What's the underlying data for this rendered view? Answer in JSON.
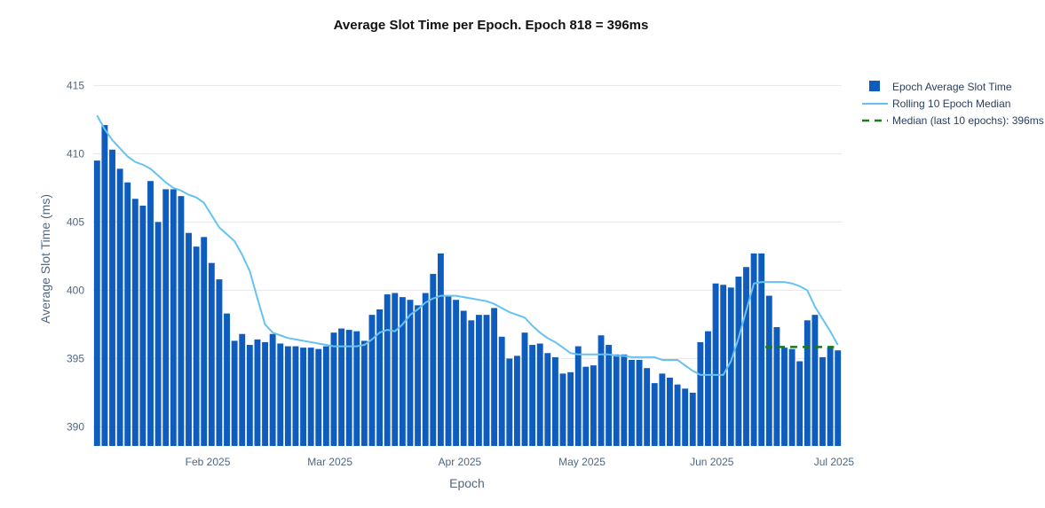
{
  "chart_data": {
    "type": "bar",
    "title": "Average Slot Time per Epoch. Epoch 818 = 396ms",
    "xlabel": "Epoch",
    "ylabel": "Average Slot Time (ms)",
    "ylim": [
      388.6,
      416.0
    ],
    "y_ticks": [
      390,
      395,
      400,
      405,
      410,
      415
    ],
    "grid": true,
    "legend_position": "top-right",
    "x_ticks": [
      {
        "label": "Feb 2025",
        "x": 14.5
      },
      {
        "label": "Mar 2025",
        "x": 30.5
      },
      {
        "label": "Apr 2025",
        "x": 47.5
      },
      {
        "label": "May 2025",
        "x": 63.5
      },
      {
        "label": "Jun 2025",
        "x": 80.5
      },
      {
        "label": "Jul 2025",
        "x": 96.5
      }
    ],
    "colors": {
      "bar": "#0f5cbf",
      "rolling": "#66c2f2",
      "median": "#1a7a1a",
      "grid": "#e6e6e6"
    },
    "series": [
      {
        "name": "Epoch Average Slot Time",
        "type": "bar",
        "values": [
          409.5,
          412.1,
          410.3,
          408.9,
          407.9,
          406.7,
          406.2,
          408.0,
          405.0,
          407.4,
          407.4,
          406.9,
          404.2,
          403.2,
          403.9,
          402.0,
          400.8,
          398.3,
          396.3,
          396.8,
          396.0,
          396.4,
          396.2,
          396.8,
          396.1,
          395.9,
          395.9,
          395.8,
          395.8,
          395.7,
          395.9,
          396.9,
          397.2,
          397.1,
          397.0,
          396.3,
          398.2,
          398.6,
          399.7,
          399.8,
          399.5,
          399.3,
          398.9,
          399.8,
          401.2,
          402.7,
          399.6,
          399.3,
          398.5,
          397.8,
          398.2,
          398.2,
          398.7,
          396.6,
          395.0,
          395.2,
          396.9,
          396.0,
          396.1,
          395.4,
          395.1,
          393.9,
          394.0,
          395.9,
          394.4,
          394.5,
          396.7,
          396.0,
          395.3,
          395.3,
          394.9,
          394.9,
          394.3,
          393.2,
          393.9,
          393.6,
          393.1,
          392.8,
          392.5,
          396.2,
          397.0,
          400.5,
          400.4,
          400.2,
          401.0,
          401.7,
          402.7,
          402.7,
          399.6,
          397.3,
          395.8,
          395.7,
          394.8,
          397.8,
          398.2,
          395.1,
          395.8,
          395.6
        ]
      },
      {
        "name": "Rolling 10 Epoch Median",
        "type": "line",
        "x": [
          0,
          1,
          2,
          3,
          4,
          5,
          6,
          7,
          8,
          9,
          10,
          11,
          12,
          13,
          14,
          15,
          16,
          17,
          18,
          19,
          20,
          21,
          22,
          23,
          24,
          25,
          26,
          27,
          28,
          29,
          30,
          31,
          32,
          33,
          34,
          35,
          36,
          37,
          38,
          39,
          40,
          41,
          42,
          43,
          44,
          45,
          46,
          47,
          48,
          49,
          50,
          51,
          52,
          53,
          54,
          55,
          56,
          57,
          58,
          59,
          60,
          61,
          62,
          63,
          64,
          65,
          66,
          67,
          68,
          69,
          70,
          71,
          72,
          73,
          74,
          75,
          76,
          77,
          78,
          79,
          80,
          81,
          82,
          83,
          84,
          85,
          86,
          87,
          88,
          89,
          90,
          91,
          92,
          93,
          94,
          95,
          96,
          97
        ],
        "values": [
          412.8,
          411.8,
          411.0,
          410.4,
          409.8,
          409.4,
          409.2,
          408.9,
          408.4,
          407.9,
          407.5,
          407.3,
          407.0,
          406.8,
          406.4,
          405.5,
          404.6,
          404.1,
          403.6,
          402.6,
          401.4,
          399.4,
          397.5,
          396.9,
          396.7,
          396.5,
          396.4,
          396.3,
          396.2,
          396.1,
          396.0,
          395.9,
          395.9,
          395.9,
          395.9,
          396.0,
          396.4,
          396.9,
          397.1,
          397.0,
          397.5,
          398.2,
          398.6,
          399.1,
          399.4,
          399.6,
          399.6,
          399.6,
          399.5,
          399.4,
          399.3,
          399.2,
          399.0,
          398.7,
          398.4,
          398.2,
          398.0,
          397.4,
          396.9,
          396.5,
          396.2,
          395.8,
          395.4,
          395.3,
          395.3,
          395.3,
          395.3,
          395.3,
          395.2,
          395.2,
          395.1,
          395.1,
          395.1,
          395.1,
          394.9,
          394.9,
          394.9,
          394.5,
          394.1,
          393.8,
          393.8,
          393.8,
          393.8,
          394.8,
          396.5,
          398.5,
          400.5,
          400.6,
          400.6,
          400.6,
          400.6,
          400.5,
          400.3,
          400.0,
          398.8,
          397.9,
          397.0,
          396.0
        ]
      },
      {
        "name": "Median (last 10 epochs): 396ms",
        "type": "dashed-line",
        "x_range": [
          87.5,
          96.5
        ],
        "value": 395.85
      }
    ]
  }
}
